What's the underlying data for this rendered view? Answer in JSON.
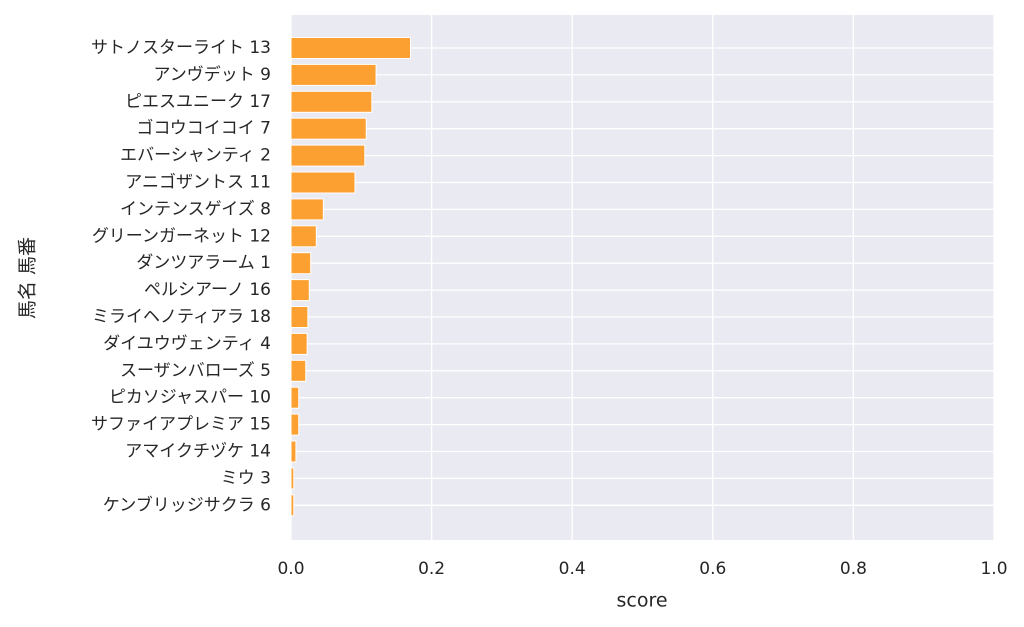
{
  "chart_data": {
    "type": "barh",
    "xlabel": "score",
    "ylabel": "馬名 馬番",
    "categories": [
      "サトノスターライト 13",
      "アンヴデット 9",
      "ピエスユニーク 17",
      "ゴコウコイコイ 7",
      "エバーシャンティ 2",
      "アニゴザントス 11",
      "インテンスゲイズ 8",
      "グリーンガーネット 12",
      "ダンツアラーム 1",
      "ペルシアーノ 16",
      "ミライヘノティアラ 18",
      "ダイユウヴェンティ 4",
      "スーザンバローズ 5",
      "ピカソジャスパー 10",
      "サファイアプレミア 15",
      "アマイクチヅケ 14",
      "ミウ 3",
      "ケンブリッジサクラ 6"
    ],
    "values": [
      0.17,
      0.121,
      0.115,
      0.107,
      0.105,
      0.091,
      0.046,
      0.036,
      0.028,
      0.026,
      0.024,
      0.023,
      0.021,
      0.011,
      0.011,
      0.007,
      0.004,
      0.004
    ],
    "color": "#fca032",
    "xlim": [
      0,
      1
    ],
    "xticks": [
      {
        "value": 0,
        "label": "0.0"
      },
      0.2,
      0.4,
      0.6,
      0.8,
      {
        "value": 1,
        "label": "1.0"
      }
    ],
    "grid": true
  }
}
